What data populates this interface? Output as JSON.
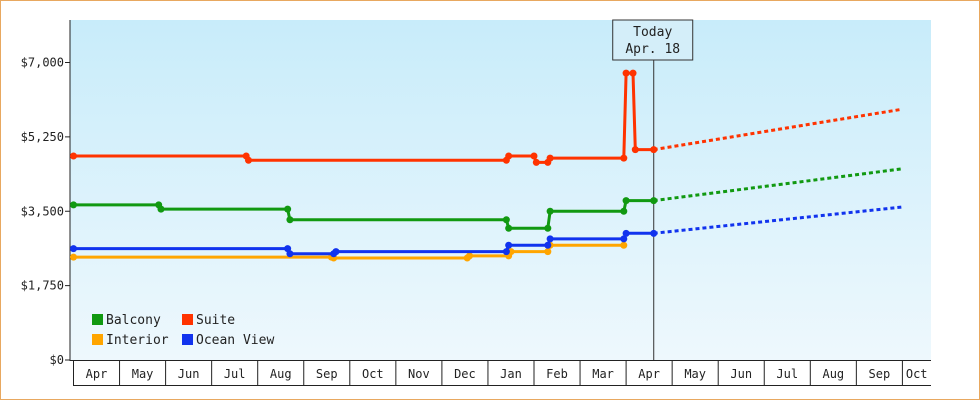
{
  "chart_data": {
    "type": "line",
    "yticks": [
      {
        "value": 0,
        "label": "$0"
      },
      {
        "value": 1750,
        "label": "$1,750"
      },
      {
        "value": 3500,
        "label": "$3,500"
      },
      {
        "value": 5250,
        "label": "$5,250"
      },
      {
        "value": 7000,
        "label": "$7,000"
      }
    ],
    "ylim": [
      0,
      8000
    ],
    "x_months": [
      "Apr",
      "May",
      "Jun",
      "Jul",
      "Aug",
      "Sep",
      "Oct",
      "Nov",
      "Dec",
      "Jan",
      "Feb",
      "Mar",
      "Apr",
      "May",
      "Jun",
      "Jul",
      "Aug",
      "Sep",
      "Oct"
    ],
    "today": {
      "line1": "Today",
      "line2": "Apr. 18",
      "x": 12.6
    },
    "legend": {
      "placement": "bottom-left",
      "items": [
        "Balcony",
        "Suite",
        "Interior",
        "Ocean View"
      ]
    },
    "series": [
      {
        "name": "Balcony",
        "color": "#119911",
        "x": [
          0.0,
          1.85,
          1.9,
          4.65,
          4.7,
          9.4,
          9.45,
          10.3,
          10.35,
          11.95,
          12.0,
          12.6
        ],
        "y": [
          3650,
          3650,
          3550,
          3550,
          3300,
          3300,
          3100,
          3100,
          3500,
          3500,
          3750,
          3750
        ],
        "forecast_x": [
          12.6,
          18.0
        ],
        "forecast_y": [
          3750,
          4500
        ]
      },
      {
        "name": "Suite",
        "color": "#ff3300",
        "x": [
          0.0,
          3.75,
          3.8,
          9.4,
          9.45,
          10.0,
          10.05,
          10.3,
          10.35,
          11.95,
          12.0,
          12.15,
          12.2,
          12.6
        ],
        "y": [
          4800,
          4800,
          4700,
          4700,
          4800,
          4800,
          4650,
          4650,
          4750,
          4750,
          6750,
          6750,
          4950,
          4950
        ],
        "forecast_x": [
          12.6,
          18.0
        ],
        "forecast_y": [
          4950,
          5900
        ]
      },
      {
        "name": "Interior",
        "color": "#ffa500",
        "x": [
          0.0,
          5.6,
          5.65,
          8.55,
          8.6,
          9.45,
          9.5,
          10.3,
          10.35,
          11.95
        ],
        "y": [
          2420,
          2420,
          2400,
          2400,
          2450,
          2450,
          2550,
          2550,
          2700,
          2700
        ],
        "forecast_x": [],
        "forecast_y": []
      },
      {
        "name": "Ocean View",
        "color": "#1133ee",
        "x": [
          0.0,
          4.65,
          4.7,
          5.65,
          5.7,
          9.4,
          9.45,
          10.3,
          10.35,
          11.95,
          12.0,
          12.6
        ],
        "y": [
          2620,
          2620,
          2500,
          2500,
          2550,
          2550,
          2700,
          2700,
          2850,
          2850,
          2980,
          2980
        ],
        "forecast_x": [
          12.6,
          18.0
        ],
        "forecast_y": [
          2980,
          3600
        ]
      }
    ]
  }
}
